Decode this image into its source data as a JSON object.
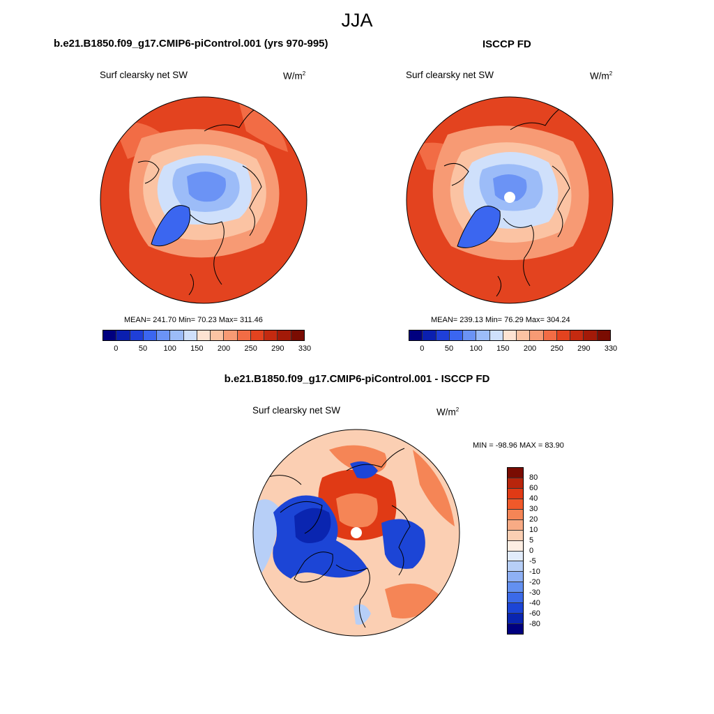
{
  "season": "JJA",
  "panels": [
    {
      "title": "b.e21.B1850.f09_g17.CMIP6-piControl.001 (yrs 970-995)",
      "variable": "Surf clearsky net SW",
      "units_base": "W/m",
      "units_exp": "2",
      "stats": "MEAN= 241.70  Min=  70.23  Max= 311.46"
    },
    {
      "title": "ISCCP FD",
      "variable": "Surf clearsky net SW",
      "units_base": "W/m",
      "units_exp": "2",
      "stats": "MEAN= 239.13  Min=  76.29  Max= 304.24"
    },
    {
      "title": "b.e21.B1850.f09_g17.CMIP6-piControl.001 - ISCCP FD",
      "variable": "Surf clearsky net SW",
      "units_base": "W/m",
      "units_exp": "2",
      "stats": "MIN = -98.96 MAX =  83.90"
    }
  ],
  "colorbar_abs": {
    "labels": [
      "0",
      "50",
      "100",
      "150",
      "200",
      "250",
      "290",
      "330"
    ],
    "colors": [
      "#00007f",
      "#0a1fb0",
      "#1f3fd8",
      "#3b66f0",
      "#6b93f5",
      "#9cbcf8",
      "#cfe0fb",
      "#fde3d2",
      "#fbc3a3",
      "#f79a74",
      "#f26c45",
      "#e3431f",
      "#c42a10",
      "#a31a08",
      "#7a0c02"
    ]
  },
  "colorbar_diff": {
    "labels": [
      "80",
      "60",
      "40",
      "30",
      "20",
      "10",
      "5",
      "0",
      "-5",
      "-10",
      "-20",
      "-30",
      "-40",
      "-60",
      "-80"
    ],
    "colors": [
      "#7a0c02",
      "#b8250c",
      "#e03a15",
      "#f0592a",
      "#f58556",
      "#f8ab85",
      "#fbcfb3",
      "#fdeee3",
      "#e2ecfb",
      "#b7cff7",
      "#8eb0f4",
      "#6390f0",
      "#3b6ae8",
      "#1c45d6",
      "#0a25b0",
      "#00007f"
    ]
  },
  "map_colors": {
    "ocean_high": "#e3431f",
    "land_high": "#f26c45",
    "mid": "#f79a74",
    "transition": "#fbc3a3",
    "ice_light": "#cfe0fb",
    "ice_mid": "#9cbcf8",
    "ice_core": "#6b93f5",
    "greenland": "#3b66f0",
    "diff_base": "#fbcfb3",
    "diff_warm": "#f58556",
    "diff_hot": "#e03a15",
    "diff_cool": "#b7cff7",
    "diff_cold": "#1c45d6",
    "diff_coldest": "#0a25b0"
  }
}
